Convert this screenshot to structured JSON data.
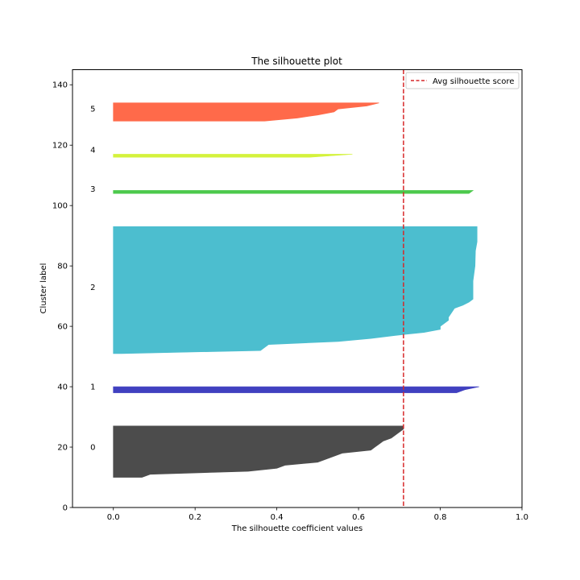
{
  "chart_data": {
    "type": "area",
    "title": "The silhouette plot",
    "xlabel": "The silhouette coefficient values",
    "ylabel": "Cluster label",
    "xlim": [
      -0.1,
      1.0
    ],
    "ylim": [
      0,
      145
    ],
    "xticks": [
      0.0,
      0.2,
      0.4,
      0.6,
      0.8,
      1.0
    ],
    "xtick_labels": [
      "0.0",
      "0.2",
      "0.4",
      "0.6",
      "0.8",
      "1.0"
    ],
    "yticks": [
      0,
      20,
      40,
      60,
      80,
      100,
      120,
      140
    ],
    "ytick_labels": [
      "0",
      "20",
      "40",
      "60",
      "80",
      "100",
      "120",
      "140"
    ],
    "grid": false,
    "legend": {
      "placement": "top-right",
      "entries": [
        "Avg silhouette score"
      ]
    },
    "avg_silhouette_score": 0.71,
    "avg_line_color": "#d62728",
    "clusters": [
      {
        "label": "0",
        "label_y": 20,
        "color": "#4c4c4c",
        "y_lower": 10,
        "profile": [
          [
            10,
            0.0
          ],
          [
            10,
            0.07
          ],
          [
            11,
            0.09
          ],
          [
            12,
            0.33
          ],
          [
            13,
            0.4
          ],
          [
            14,
            0.42
          ],
          [
            15,
            0.5
          ],
          [
            16,
            0.52
          ],
          [
            17,
            0.54
          ],
          [
            18,
            0.56
          ],
          [
            19,
            0.63
          ],
          [
            20,
            0.64
          ],
          [
            21,
            0.65
          ],
          [
            22,
            0.66
          ],
          [
            23,
            0.68
          ],
          [
            24,
            0.69
          ],
          [
            25,
            0.7
          ],
          [
            26,
            0.71
          ],
          [
            27,
            0.71
          ]
        ]
      },
      {
        "label": "1",
        "label_y": 40,
        "color": "#4040c0",
        "y_lower": 38,
        "profile": [
          [
            38,
            0.0
          ],
          [
            38,
            0.84
          ],
          [
            39,
            0.86
          ],
          [
            40,
            0.895
          ]
        ]
      },
      {
        "label": "2",
        "label_y": 73,
        "color": "#4cbecf",
        "y_lower": 51,
        "profile": [
          [
            51,
            0.0
          ],
          [
            51,
            0.02
          ],
          [
            52,
            0.36
          ],
          [
            53,
            0.37
          ],
          [
            54,
            0.38
          ],
          [
            55,
            0.55
          ],
          [
            56,
            0.63
          ],
          [
            57,
            0.69
          ],
          [
            58,
            0.76
          ],
          [
            59,
            0.8
          ],
          [
            60,
            0.8
          ],
          [
            61,
            0.81
          ],
          [
            62,
            0.82
          ],
          [
            63,
            0.82
          ],
          [
            64,
            0.825
          ],
          [
            65,
            0.83
          ],
          [
            66,
            0.835
          ],
          [
            67,
            0.855
          ],
          [
            68,
            0.87
          ],
          [
            69,
            0.88
          ],
          [
            70,
            0.88
          ],
          [
            75,
            0.88
          ],
          [
            80,
            0.885
          ],
          [
            85,
            0.886
          ],
          [
            88,
            0.89
          ],
          [
            93,
            0.89
          ]
        ]
      },
      {
        "label": "3",
        "label_y": 105.5,
        "color": "#4cc94c",
        "y_lower": 104,
        "profile": [
          [
            104,
            0.0
          ],
          [
            104,
            0.87
          ],
          [
            105,
            0.88
          ]
        ]
      },
      {
        "label": "4",
        "label_y": 118.5,
        "color": "#d4f23c",
        "y_lower": 116,
        "profile": [
          [
            116,
            0.0
          ],
          [
            116,
            0.48
          ],
          [
            117,
            0.585
          ]
        ]
      },
      {
        "label": "5",
        "label_y": 132,
        "color": "#ff6a4a",
        "y_lower": 128,
        "profile": [
          [
            128,
            0.0
          ],
          [
            128,
            0.37
          ],
          [
            129,
            0.45
          ],
          [
            130,
            0.5
          ],
          [
            131,
            0.54
          ],
          [
            132,
            0.55
          ],
          [
            133,
            0.62
          ],
          [
            134,
            0.65
          ]
        ]
      }
    ]
  }
}
